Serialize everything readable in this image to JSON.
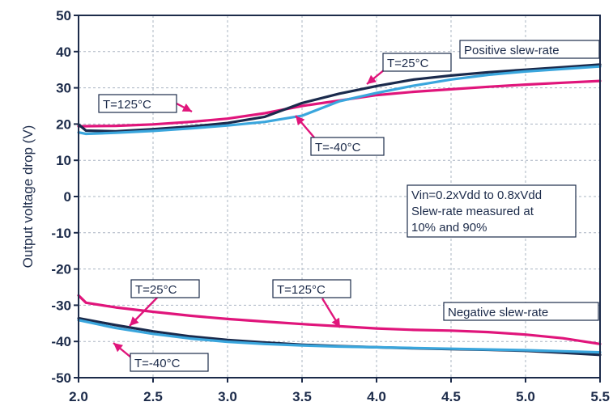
{
  "chart_data": {
    "type": "line",
    "title": "",
    "xlabel": "",
    "ylabel": "Output voltage drop (V)",
    "xlim": [
      2.0,
      5.5
    ],
    "ylim": [
      -50,
      50
    ],
    "grid": true,
    "x_ticks": [
      "2.0",
      "2.5",
      "3.0",
      "3.5",
      "4.0",
      "4.5",
      "5.0",
      "5.5"
    ],
    "y_ticks": [
      "50",
      "40",
      "30",
      "20",
      "10",
      "0",
      "-10",
      "-20",
      "-30",
      "-40",
      "-50"
    ],
    "series": [
      {
        "group": "positive",
        "temp": "125C",
        "color": "#e0157b",
        "points": [
          [
            2.0,
            19.4
          ],
          [
            2.25,
            19.5
          ],
          [
            2.5,
            19.9
          ],
          [
            2.75,
            20.6
          ],
          [
            3.0,
            21.5
          ],
          [
            3.25,
            23.0
          ],
          [
            3.5,
            25.0
          ],
          [
            3.75,
            26.5
          ],
          [
            4.0,
            28.0
          ],
          [
            4.25,
            28.9
          ],
          [
            4.5,
            29.6
          ],
          [
            4.75,
            30.3
          ],
          [
            5.0,
            30.9
          ],
          [
            5.25,
            31.4
          ],
          [
            5.5,
            31.9
          ]
        ]
      },
      {
        "group": "positive",
        "temp": "25C",
        "color": "#1a2a4c",
        "points": [
          [
            2.0,
            19.9
          ],
          [
            2.05,
            18.2
          ],
          [
            2.25,
            18.0
          ],
          [
            2.5,
            18.6
          ],
          [
            2.75,
            19.3
          ],
          [
            3.0,
            20.3
          ],
          [
            3.25,
            22.0
          ],
          [
            3.5,
            25.8
          ],
          [
            3.75,
            28.4
          ],
          [
            4.0,
            30.5
          ],
          [
            4.25,
            32.3
          ],
          [
            4.5,
            33.4
          ],
          [
            4.75,
            34.3
          ],
          [
            5.0,
            35.0
          ],
          [
            5.25,
            35.7
          ],
          [
            5.5,
            36.4
          ]
        ]
      },
      {
        "group": "positive",
        "temp": "-40C",
        "color": "#3aa6dd",
        "points": [
          [
            2.0,
            17.7
          ],
          [
            2.05,
            17.3
          ],
          [
            2.25,
            17.6
          ],
          [
            2.5,
            18.1
          ],
          [
            2.75,
            18.8
          ],
          [
            3.0,
            19.6
          ],
          [
            3.25,
            20.6
          ],
          [
            3.5,
            22.3
          ],
          [
            3.75,
            26.3
          ],
          [
            4.0,
            28.6
          ],
          [
            4.25,
            30.6
          ],
          [
            4.5,
            32.3
          ],
          [
            4.75,
            33.6
          ],
          [
            5.0,
            34.5
          ],
          [
            5.25,
            35.2
          ],
          [
            5.5,
            35.9
          ]
        ]
      },
      {
        "group": "negative",
        "temp": "125C",
        "color": "#e0157b",
        "points": [
          [
            2.0,
            -27.3
          ],
          [
            2.05,
            -29.3
          ],
          [
            2.25,
            -30.6
          ],
          [
            2.5,
            -31.8
          ],
          [
            2.75,
            -32.9
          ],
          [
            3.0,
            -33.8
          ],
          [
            3.25,
            -34.5
          ],
          [
            3.5,
            -35.2
          ],
          [
            3.75,
            -35.8
          ],
          [
            4.0,
            -36.4
          ],
          [
            4.25,
            -36.8
          ],
          [
            4.5,
            -37.0
          ],
          [
            4.75,
            -37.4
          ],
          [
            5.0,
            -38.1
          ],
          [
            5.25,
            -39.1
          ],
          [
            5.5,
            -40.7
          ]
        ]
      },
      {
        "group": "negative",
        "temp": "25C",
        "color": "#1a2a4c",
        "points": [
          [
            2.0,
            -33.6
          ],
          [
            2.25,
            -35.5
          ],
          [
            2.5,
            -37.2
          ],
          [
            2.75,
            -38.6
          ],
          [
            3.0,
            -39.6
          ],
          [
            3.25,
            -40.3
          ],
          [
            3.5,
            -40.9
          ],
          [
            3.75,
            -41.3
          ],
          [
            4.0,
            -41.6
          ],
          [
            4.25,
            -41.9
          ],
          [
            4.5,
            -42.1
          ],
          [
            4.75,
            -42.3
          ],
          [
            5.0,
            -42.6
          ],
          [
            5.25,
            -43.1
          ],
          [
            5.5,
            -43.7
          ]
        ]
      },
      {
        "group": "negative",
        "temp": "-40C",
        "color": "#3aa6dd",
        "points": [
          [
            2.0,
            -34.1
          ],
          [
            2.25,
            -36.3
          ],
          [
            2.5,
            -37.9
          ],
          [
            2.75,
            -39.2
          ],
          [
            3.0,
            -40.1
          ],
          [
            3.25,
            -40.7
          ],
          [
            3.5,
            -41.1
          ],
          [
            3.75,
            -41.4
          ],
          [
            4.0,
            -41.6
          ],
          [
            4.25,
            -41.8
          ],
          [
            4.5,
            -42.0
          ],
          [
            4.75,
            -42.2
          ],
          [
            5.0,
            -42.4
          ],
          [
            5.25,
            -42.7
          ],
          [
            5.5,
            -43.0
          ]
        ]
      }
    ],
    "annotations": {
      "pos_title": "Positive slew-rate",
      "neg_title": "Negative slew-rate",
      "note_line1": "Vin=0.2xVdd to 0.8xVdd",
      "note_line2": "Slew-rate measured at",
      "note_line3": "10% and 90%",
      "pos_t125": "T=125°C",
      "pos_t25": "T=25°C",
      "pos_tm40": "T=-40°C",
      "neg_t25": "T=25°C",
      "neg_t125": "T=125°C",
      "neg_tm40": "T=-40°C"
    }
  }
}
